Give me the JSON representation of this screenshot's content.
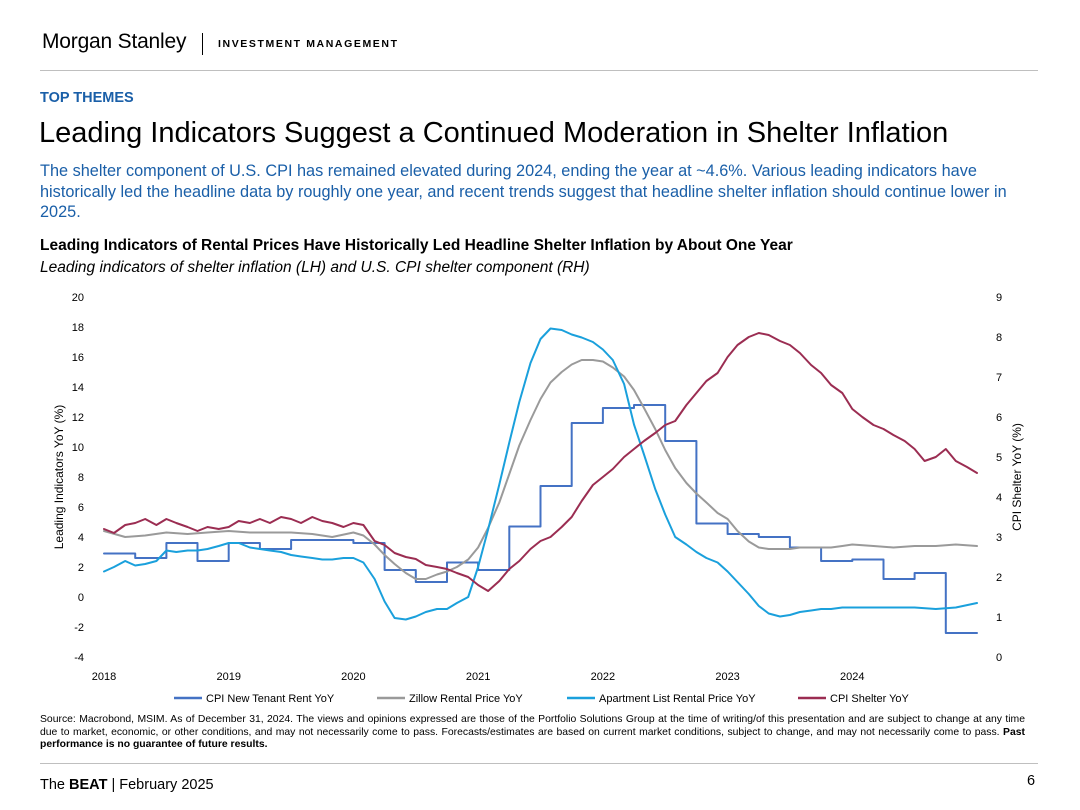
{
  "header": {
    "brand": "Morgan Stanley",
    "division": "INVESTMENT MANAGEMENT"
  },
  "section_label": "TOP THEMES",
  "title": "Leading Indicators Suggest a Continued Moderation in Shelter Inflation",
  "subtitle": "The shelter component of U.S. CPI has remained elevated during 2024, ending the year at ~4.6%. Various leading indicators have historically led the headline data by roughly one year, and recent trends suggest that headline shelter inflation should continue lower in 2025.",
  "chart_data": {
    "type": "line",
    "title": "Leading Indicators of Rental Prices Have Historically Led Headline Shelter Inflation by About One Year",
    "subtitle": "Leading indicators of shelter inflation (LH) and U.S. CPI shelter component (RH)",
    "ylabel_left": "Leading Indicators YoY (%)",
    "ylabel_right": "CPI Shelter YoY (%)",
    "xlim": [
      2018.0,
      2025.0
    ],
    "ylim_left": [
      -4,
      20
    ],
    "ylim_right": [
      0,
      9
    ],
    "x_ticks": [
      "2018",
      "2019",
      "2020",
      "2021",
      "2022",
      "2023",
      "2024"
    ],
    "y_ticks_left": [
      "20",
      "18",
      "16",
      "14",
      "12",
      "10",
      "8",
      "6",
      "4",
      "2",
      "0",
      "-2",
      "-4"
    ],
    "y_ticks_right": [
      "9",
      "8",
      "7",
      "6",
      "5",
      "4",
      "3",
      "2",
      "1",
      "0"
    ],
    "grid": false,
    "legend_position": "bottom",
    "series": [
      {
        "name": "CPI New Tenant Rent YoY",
        "axis": "left",
        "color": "#4472c4",
        "step": true,
        "x": [
          2018.0,
          2018.25,
          2018.5,
          2018.75,
          2019.0,
          2019.25,
          2019.5,
          2019.75,
          2020.0,
          2020.25,
          2020.5,
          2020.75,
          2021.0,
          2021.25,
          2021.5,
          2021.75,
          2022.0,
          2022.25,
          2022.5,
          2022.75,
          2023.0,
          2023.25,
          2023.5,
          2023.75,
          2024.0,
          2024.25,
          2024.5,
          2024.75,
          2025.0
        ],
        "y": [
          2.9,
          2.6,
          3.6,
          2.4,
          3.6,
          3.2,
          3.8,
          3.8,
          3.6,
          1.8,
          1.0,
          2.3,
          1.8,
          4.7,
          7.4,
          11.6,
          12.6,
          12.8,
          10.4,
          4.9,
          4.2,
          4.0,
          3.3,
          2.4,
          2.5,
          1.2,
          1.6,
          -2.4,
          -2.4
        ]
      },
      {
        "name": "Zillow Rental Price YoY",
        "axis": "left",
        "color": "#9a9a9a",
        "step": false,
        "x": [
          2018.0,
          2018.17,
          2018.33,
          2018.5,
          2018.67,
          2018.83,
          2019.0,
          2019.17,
          2019.33,
          2019.5,
          2019.67,
          2019.83,
          2020.0,
          2020.08,
          2020.17,
          2020.25,
          2020.33,
          2020.42,
          2020.5,
          2020.58,
          2020.67,
          2020.75,
          2020.83,
          2020.92,
          2021.0,
          2021.08,
          2021.17,
          2021.25,
          2021.33,
          2021.42,
          2021.5,
          2021.58,
          2021.67,
          2021.75,
          2021.83,
          2021.92,
          2022.0,
          2022.08,
          2022.17,
          2022.25,
          2022.33,
          2022.42,
          2022.5,
          2022.58,
          2022.67,
          2022.75,
          2022.83,
          2022.92,
          2023.0,
          2023.08,
          2023.17,
          2023.25,
          2023.33,
          2023.42,
          2023.5,
          2023.58,
          2023.67,
          2023.75,
          2023.83,
          2023.92,
          2024.0,
          2024.17,
          2024.33,
          2024.5,
          2024.67,
          2024.83,
          2025.0
        ],
        "y": [
          4.4,
          4.0,
          4.1,
          4.3,
          4.2,
          4.3,
          4.4,
          4.3,
          4.3,
          4.3,
          4.2,
          4.0,
          4.3,
          4.1,
          3.5,
          2.8,
          2.2,
          1.6,
          1.2,
          1.2,
          1.5,
          1.7,
          2.0,
          2.5,
          3.3,
          4.6,
          6.3,
          8.2,
          10.1,
          11.8,
          13.2,
          14.3,
          15.0,
          15.5,
          15.8,
          15.8,
          15.7,
          15.3,
          14.7,
          13.8,
          12.6,
          11.2,
          9.8,
          8.6,
          7.6,
          6.9,
          6.3,
          5.6,
          5.2,
          4.4,
          3.7,
          3.3,
          3.2,
          3.2,
          3.2,
          3.3,
          3.3,
          3.3,
          3.3,
          3.4,
          3.5,
          3.4,
          3.3,
          3.4,
          3.4,
          3.5,
          3.4
        ]
      },
      {
        "name": "Apartment List Rental Price YoY",
        "axis": "left",
        "color": "#1aa0dc",
        "step": false,
        "x": [
          2018.0,
          2018.08,
          2018.17,
          2018.25,
          2018.33,
          2018.42,
          2018.5,
          2018.58,
          2018.67,
          2018.75,
          2018.83,
          2018.92,
          2019.0,
          2019.08,
          2019.17,
          2019.25,
          2019.33,
          2019.42,
          2019.5,
          2019.58,
          2019.67,
          2019.75,
          2019.83,
          2019.92,
          2020.0,
          2020.08,
          2020.17,
          2020.25,
          2020.33,
          2020.42,
          2020.5,
          2020.58,
          2020.67,
          2020.75,
          2020.83,
          2020.92,
          2021.0,
          2021.08,
          2021.17,
          2021.25,
          2021.33,
          2021.42,
          2021.5,
          2021.58,
          2021.67,
          2021.75,
          2021.83,
          2021.92,
          2022.0,
          2022.08,
          2022.17,
          2022.25,
          2022.33,
          2022.42,
          2022.5,
          2022.58,
          2022.67,
          2022.75,
          2022.83,
          2022.92,
          2023.0,
          2023.08,
          2023.17,
          2023.25,
          2023.33,
          2023.42,
          2023.5,
          2023.58,
          2023.67,
          2023.75,
          2023.83,
          2023.92,
          2024.0,
          2024.17,
          2024.33,
          2024.5,
          2024.67,
          2024.83,
          2025.0
        ],
        "y": [
          1.7,
          2.0,
          2.4,
          2.1,
          2.2,
          2.4,
          3.1,
          3.0,
          3.1,
          3.1,
          3.2,
          3.4,
          3.6,
          3.6,
          3.3,
          3.2,
          3.1,
          3.0,
          2.8,
          2.7,
          2.6,
          2.5,
          2.5,
          2.6,
          2.6,
          2.3,
          1.2,
          -0.3,
          -1.4,
          -1.5,
          -1.3,
          -1.0,
          -0.8,
          -0.8,
          -0.4,
          0.0,
          2.0,
          4.5,
          7.5,
          10.3,
          13.0,
          15.6,
          17.2,
          17.9,
          17.8,
          17.5,
          17.3,
          17.0,
          16.5,
          15.8,
          14.2,
          11.5,
          9.5,
          7.2,
          5.5,
          4.0,
          3.5,
          3.0,
          2.6,
          2.3,
          1.7,
          1.0,
          0.2,
          -0.6,
          -1.1,
          -1.3,
          -1.2,
          -1.0,
          -0.9,
          -0.8,
          -0.8,
          -0.7,
          -0.7,
          -0.7,
          -0.7,
          -0.7,
          -0.8,
          -0.7,
          -0.4
        ]
      },
      {
        "name": "CPI Shelter YoY",
        "axis": "right",
        "color": "#9b2d52",
        "step": false,
        "x": [
          2018.0,
          2018.08,
          2018.17,
          2018.25,
          2018.33,
          2018.42,
          2018.5,
          2018.58,
          2018.67,
          2018.75,
          2018.83,
          2018.92,
          2019.0,
          2019.08,
          2019.17,
          2019.25,
          2019.33,
          2019.42,
          2019.5,
          2019.58,
          2019.67,
          2019.75,
          2019.83,
          2019.92,
          2020.0,
          2020.08,
          2020.17,
          2020.25,
          2020.33,
          2020.42,
          2020.5,
          2020.58,
          2020.67,
          2020.75,
          2020.83,
          2020.92,
          2021.0,
          2021.08,
          2021.17,
          2021.25,
          2021.33,
          2021.42,
          2021.5,
          2021.58,
          2021.67,
          2021.75,
          2021.83,
          2021.92,
          2022.0,
          2022.08,
          2022.17,
          2022.25,
          2022.33,
          2022.42,
          2022.5,
          2022.58,
          2022.67,
          2022.75,
          2022.83,
          2022.92,
          2023.0,
          2023.08,
          2023.17,
          2023.25,
          2023.33,
          2023.42,
          2023.5,
          2023.58,
          2023.67,
          2023.75,
          2023.83,
          2023.92,
          2024.0,
          2024.08,
          2024.17,
          2024.25,
          2024.33,
          2024.42,
          2024.5,
          2024.58,
          2024.67,
          2024.75,
          2024.83,
          2024.92,
          2025.0
        ],
        "y": [
          3.2,
          3.1,
          3.3,
          3.35,
          3.45,
          3.3,
          3.45,
          3.35,
          3.25,
          3.15,
          3.25,
          3.2,
          3.25,
          3.4,
          3.35,
          3.45,
          3.35,
          3.5,
          3.45,
          3.35,
          3.5,
          3.4,
          3.35,
          3.25,
          3.35,
          3.3,
          2.9,
          2.8,
          2.6,
          2.5,
          2.45,
          2.3,
          2.25,
          2.2,
          2.1,
          2.0,
          1.8,
          1.65,
          1.9,
          2.2,
          2.4,
          2.7,
          2.9,
          3.0,
          3.25,
          3.5,
          3.9,
          4.3,
          4.5,
          4.7,
          5.0,
          5.2,
          5.4,
          5.6,
          5.8,
          5.9,
          6.3,
          6.6,
          6.9,
          7.1,
          7.5,
          7.8,
          8.0,
          8.1,
          8.05,
          7.9,
          7.8,
          7.6,
          7.3,
          7.1,
          6.8,
          6.6,
          6.2,
          6.0,
          5.8,
          5.7,
          5.55,
          5.4,
          5.2,
          4.9,
          5.0,
          5.2,
          4.9,
          4.75,
          4.6
        ]
      }
    ]
  },
  "source_note": "Source: Macrobond, MSIM. As of December 31, 2024. The views and opinions expressed are those of the Portfolio Solutions Group at the time of writing/of this presentation and are subject to change at any time due to market, economic, or other conditions, and may not necessarily come to pass. Forecasts/estimates are based on current market conditions, subject to change, and may not necessarily come to pass.",
  "source_disclaimer": "Past performance is no guarantee of future results.",
  "footer": {
    "prefix": "The",
    "brand": "BEAT",
    "date": "| February 2025",
    "page_number": "6"
  }
}
